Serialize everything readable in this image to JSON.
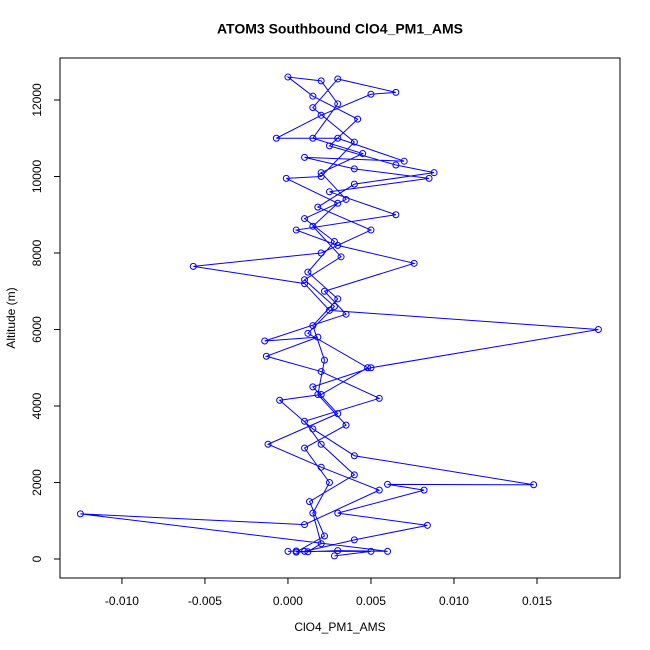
{
  "chart_data": {
    "type": "line",
    "title": "ATOM3 Southbound ClO4_PM1_AMS",
    "x_label": "ClO4_PM1_AMS",
    "y_label": "Altitude (m)",
    "color": "#0000ff",
    "markers": true,
    "grid": false,
    "xlim": [
      -0.01373,
      0.02
    ],
    "ylim": [
      -497,
      13098
    ],
    "xticks": [
      {
        "value": -0.01,
        "label": "-0.010"
      },
      {
        "value": -0.005,
        "label": "-0.005"
      },
      {
        "value": 0,
        "label": "0.000"
      },
      {
        "value": 0.005,
        "label": "0.005"
      },
      {
        "value": 0.01,
        "label": "0.010"
      },
      {
        "value": 0.015,
        "label": "0.015"
      }
    ],
    "yticks": [
      0,
      2000,
      4000,
      6000,
      8000,
      10000,
      12000
    ],
    "x": [
      0.0,
      0.0005,
      0.0012,
      0.002,
      0.0015,
      0.0025,
      0.001,
      0.0035,
      0.0018,
      0.0022,
      0.0015,
      0.003,
      0.0012,
      0.0028,
      0.001,
      0.0035,
      0.002,
      0.0045,
      0.0015,
      0.003,
      0.002,
      0.0,
      0.0015,
      0.0042,
      0.0025,
      0.0065,
      0.0088,
      0.004,
      0.0018,
      0.005,
      0.002,
      -0.0057,
      0.001,
      0.0025,
      0.0187,
      0.005,
      0.0015,
      0.003,
      -0.0012,
      0.002,
      0.0055,
      0.001,
      -0.0125,
      0.006,
      0.003,
      0.0005,
      0.0022,
      0.0013,
      0.004,
      0.002,
      0.001,
      0.0055,
      0.002,
      -0.0013,
      0.0018,
      -0.0014,
      0.0035,
      0.0022,
      0.0076,
      0.003,
      0.0005,
      0.0065,
      0.0025,
      0.0085,
      0.004,
      0.001,
      0.007,
      0.003,
      -0.0007,
      0.002,
      0.005,
      0.0065,
      0.003,
      0.0015,
      0.004,
      0.002,
      -0.0001,
      0.003,
      0.0015,
      0.0032,
      0.001,
      0.0028,
      0.0012,
      0.0048,
      0.002,
      -0.0005,
      0.0015,
      0.004,
      0.0148,
      0.006,
      0.0082,
      0.003,
      0.0084,
      0.004,
      0.001,
      0.005,
      0.0028
    ],
    "values": [
      200,
      210,
      190,
      400,
      1200,
      2000,
      2900,
      3500,
      4300,
      5200,
      6100,
      6800,
      7500,
      8300,
      8900,
      9400,
      10100,
      10600,
      11000,
      11900,
      12500,
      12600,
      12100,
      11500,
      10800,
      10300,
      10100,
      9800,
      9200,
      8600,
      8000,
      7650,
      7200,
      6500,
      6000,
      5000,
      4500,
      3800,
      3000,
      2400,
      1800,
      900,
      1180,
      200,
      220,
      180,
      600,
      1500,
      2200,
      3000,
      3600,
      4200,
      4900,
      5300,
      5800,
      5700,
      6400,
      7000,
      7730,
      8200,
      8600,
      9000,
      9600,
      9950,
      10200,
      10500,
      10400,
      11000,
      11000,
      11600,
      12150,
      12200,
      12550,
      11800,
      10900,
      10000,
      9950,
      9300,
      8700,
      7900,
      7300,
      6600,
      5900,
      5000,
      4300,
      4150,
      3400,
      2700,
      1940,
      1950,
      1800,
      1200,
      880,
      500,
      200,
      200,
      80
    ]
  }
}
